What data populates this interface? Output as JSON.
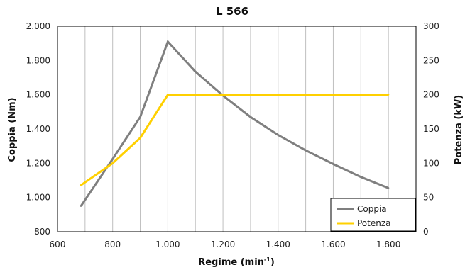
{
  "chart_data": {
    "type": "line",
    "title": "L 566",
    "xlabel": "Regime (min",
    "xlabel_sup": "-1",
    "xlabel_suffix": ")",
    "ylabel_left": "Coppia (Nm)",
    "ylabel_right": "Potenza (kW)",
    "xlim": [
      600,
      1900
    ],
    "ylim_left": [
      800,
      2000
    ],
    "ylim_right": [
      0,
      300
    ],
    "x_ticks": [
      600,
      800,
      1000,
      1200,
      1400,
      1600,
      1800
    ],
    "x_tick_labels": [
      "600",
      "800",
      "1.000",
      "1.200",
      "1.400",
      "1.600",
      "1.800"
    ],
    "y_left_ticks": [
      800,
      1000,
      1200,
      1400,
      1600,
      1800,
      2000
    ],
    "y_left_tick_labels": [
      "800",
      "1.000",
      "1.200",
      "1.400",
      "1.600",
      "1.800",
      "2.000"
    ],
    "y_right_ticks": [
      0,
      50,
      100,
      150,
      200,
      250,
      300
    ],
    "y_right_tick_labels": [
      "0",
      "50",
      "100",
      "150",
      "200",
      "250",
      "300"
    ],
    "grid": "vertical",
    "legend_position": "bottom-right",
    "series": [
      {
        "name": "Coppia",
        "axis": "left",
        "color": "#7f7f7f",
        "x": [
          685,
          800,
          900,
          1000,
          1100,
          1200,
          1300,
          1400,
          1500,
          1600,
          1700,
          1800
        ],
        "y": [
          950,
          1225,
          1470,
          1910,
          1735,
          1595,
          1470,
          1365,
          1275,
          1195,
          1120,
          1055
        ]
      },
      {
        "name": "Potenza",
        "axis": "right",
        "color": "#ffd000",
        "x": [
          685,
          800,
          900,
          1000,
          1100,
          1200,
          1300,
          1400,
          1500,
          1600,
          1700,
          1800
        ],
        "y": [
          68,
          100,
          137,
          200,
          200,
          200,
          200,
          200,
          200,
          200,
          200,
          200
        ]
      }
    ]
  }
}
